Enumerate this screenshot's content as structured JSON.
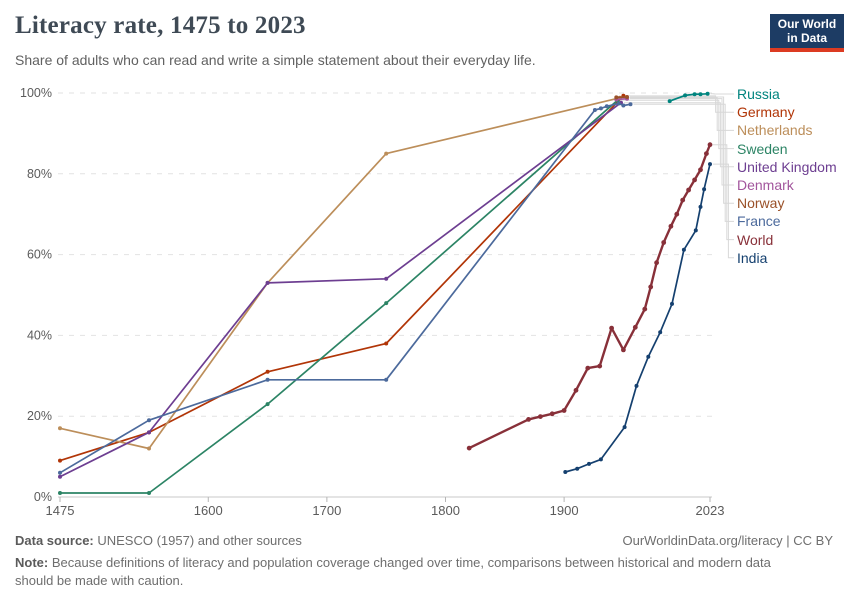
{
  "header": {
    "title": "Literacy rate, 1475 to 2023",
    "subtitle": "Share of adults who can read and write a simple statement about their everyday life.",
    "logo": {
      "line1": "Our World",
      "line2": "in Data",
      "navy": "#1d3c64",
      "red": "#dc3b22"
    }
  },
  "chart_data": {
    "type": "line",
    "title": "Literacy rate, 1475 to 2023",
    "xlabel": "",
    "ylabel": "",
    "x_ticks": [
      1475,
      1600,
      1700,
      1800,
      1900,
      2023
    ],
    "x_range": [
      1475,
      2023
    ],
    "y_ticks": [
      "0%",
      "20%",
      "40%",
      "60%",
      "80%",
      "100%"
    ],
    "y_tick_values": [
      0,
      20,
      40,
      60,
      80,
      100
    ],
    "y_range": [
      0,
      100
    ],
    "grid": "dashed horizontal",
    "legend_position": "right",
    "series": [
      {
        "name": "Russia",
        "color": "#00847E",
        "points": [
          [
            1989,
            98.0
          ],
          [
            2002,
            99.4
          ],
          [
            2010,
            99.7
          ],
          [
            2015,
            99.7
          ],
          [
            2021,
            99.8
          ]
        ]
      },
      {
        "name": "Germany",
        "color": "#B13507",
        "points": [
          [
            1475,
            9
          ],
          [
            1550,
            16
          ],
          [
            1650,
            31
          ],
          [
            1750,
            38
          ],
          [
            1950,
            99.3
          ]
        ]
      },
      {
        "name": "Netherlands",
        "color": "#BC8E5A",
        "points": [
          [
            1475,
            17
          ],
          [
            1550,
            12
          ],
          [
            1650,
            53
          ],
          [
            1750,
            85
          ],
          [
            1947,
            98.8
          ]
        ]
      },
      {
        "name": "Sweden",
        "color": "#2C8465",
        "points": [
          [
            1475,
            1
          ],
          [
            1550,
            1
          ],
          [
            1650,
            23
          ],
          [
            1750,
            48
          ],
          [
            1945,
            98.2
          ]
        ]
      },
      {
        "name": "United Kingdom",
        "color": "#6D3E91",
        "points": [
          [
            1475,
            5
          ],
          [
            1550,
            16
          ],
          [
            1650,
            53
          ],
          [
            1750,
            54
          ],
          [
            1948,
            97.6
          ]
        ]
      },
      {
        "name": "Denmark",
        "color": "#A2559C",
        "points": [
          [
            1944,
            98.4
          ],
          [
            1953,
            98.6
          ]
        ]
      },
      {
        "name": "Norway",
        "color": "#9A5129",
        "points": [
          [
            1944,
            98.9
          ],
          [
            1953,
            99.0
          ]
        ]
      },
      {
        "name": "France",
        "color": "#4C6A9C",
        "points": [
          [
            1475,
            6
          ],
          [
            1550,
            19
          ],
          [
            1650,
            29
          ],
          [
            1750,
            29
          ],
          [
            1926,
            95.8
          ],
          [
            1931,
            96.2
          ],
          [
            1936,
            96.7
          ],
          [
            1946,
            97.4
          ],
          [
            1950,
            96.9
          ],
          [
            1956,
            97.2
          ]
        ]
      },
      {
        "name": "World",
        "color": "#883039",
        "thick": true,
        "points": [
          [
            1820,
            12.1
          ],
          [
            1870,
            19.2
          ],
          [
            1880,
            19.9
          ],
          [
            1890,
            20.6
          ],
          [
            1900,
            21.4
          ],
          [
            1910,
            26.4
          ],
          [
            1920,
            31.9
          ],
          [
            1930,
            32.4
          ],
          [
            1940,
            41.8
          ],
          [
            1950,
            36.4
          ],
          [
            1960,
            42.0
          ],
          [
            1968,
            46.5
          ],
          [
            1973,
            52.0
          ],
          [
            1978,
            58.0
          ],
          [
            1984,
            63.0
          ],
          [
            1990,
            67.0
          ],
          [
            1995,
            70.0
          ],
          [
            2000,
            73.5
          ],
          [
            2005,
            76.0
          ],
          [
            2010,
            78.5
          ],
          [
            2015,
            81.0
          ],
          [
            2020,
            85.0
          ],
          [
            2023,
            87.2
          ]
        ]
      },
      {
        "name": "India",
        "color": "#15406F",
        "points": [
          [
            1901,
            6.2
          ],
          [
            1911,
            7.0
          ],
          [
            1921,
            8.2
          ],
          [
            1931,
            9.3
          ],
          [
            1951,
            17.3
          ],
          [
            1961,
            27.5
          ],
          [
            1971,
            34.7
          ],
          [
            1981,
            40.8
          ],
          [
            1991,
            47.8
          ],
          [
            2001,
            61.2
          ],
          [
            2011,
            66.0
          ],
          [
            2015,
            71.8
          ],
          [
            2018,
            76.2
          ],
          [
            2023,
            82.4
          ]
        ]
      }
    ]
  },
  "footer": {
    "source_label": "Data source:",
    "source_text": " UNESCO (1957) and other sources",
    "link": "OurWorldinData.org/literacy | CC BY",
    "note_label": "Note:",
    "note_text": " Because definitions of literacy and population coverage changed over time, comparisons between historical and modern data should be made with caution."
  }
}
